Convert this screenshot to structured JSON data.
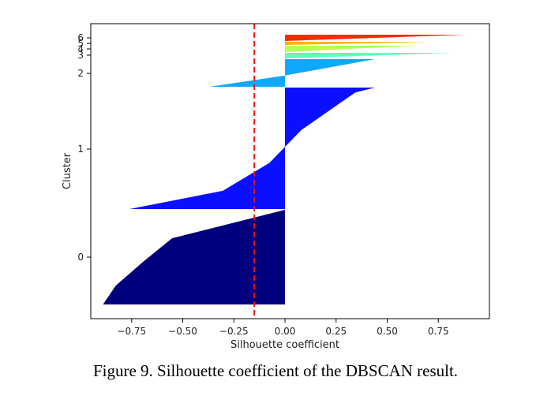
{
  "chart_data": {
    "type": "silhouette",
    "title": "",
    "xlabel": "Silhouette coefficient",
    "ylabel": "Cluster",
    "xlim": [
      -0.95,
      1.0
    ],
    "x_ticks": [
      -0.75,
      -0.5,
      -0.25,
      0.0,
      0.25,
      0.5,
      0.75
    ],
    "x_tick_labels": [
      "−0.75",
      "−0.50",
      "−0.25",
      "0.00",
      "0.25",
      "0.50",
      "0.75"
    ],
    "y_tick_labels": [
      "0",
      "1",
      "2",
      "3",
      "4",
      "5",
      "6"
    ],
    "threshold": {
      "value": -0.15,
      "color": "#ee1111",
      "style": "dashed"
    },
    "clusters": [
      {
        "label": "0",
        "color": "#00007f",
        "min": -0.89,
        "max": 0.0
      },
      {
        "label": "1",
        "color": "#0a10ff",
        "min": -0.76,
        "max": 0.44
      },
      {
        "label": "2",
        "color": "#10a8ff",
        "min": -0.37,
        "max": 0.44
      },
      {
        "label": "3",
        "color": "#5cffb4",
        "min": 0.0,
        "max": 0.82
      },
      {
        "label": "4",
        "color": "#b4ff50",
        "min": 0.0,
        "max": 0.63
      },
      {
        "label": "5",
        "color": "#ffb400",
        "min": 0.0,
        "max": 0.72
      },
      {
        "label": "6",
        "color": "#ff2a00",
        "min": 0.0,
        "max": 0.89
      }
    ]
  },
  "caption": "Figure 9. Silhouette coefficient of the DBSCAN result."
}
